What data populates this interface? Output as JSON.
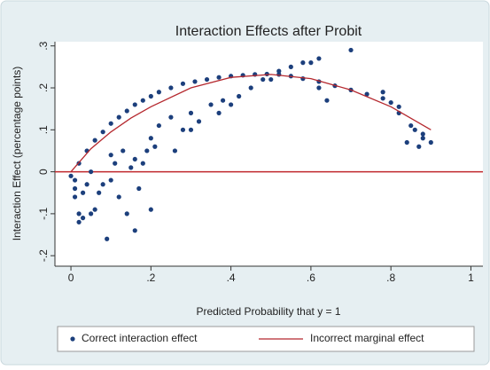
{
  "chart_data": {
    "type": "scatter",
    "title": "Interaction Effects after Probit",
    "x_label": "Predicted Probability that y = 1",
    "y_label": "Interaction Effect (percentage points)",
    "xlim": [
      -0.04,
      1.03
    ],
    "ylim": [
      -0.225,
      0.31
    ],
    "xticks": [
      0,
      {
        "value": 0.2,
        "label": ".2"
      },
      {
        "value": 0.4,
        "label": ".4"
      },
      {
        "value": 0.6,
        "label": ".6"
      },
      {
        "value": 0.8,
        "label": ".8"
      },
      1
    ],
    "yticks": [
      {
        "value": -0.2,
        "label": "-.2"
      },
      {
        "value": -0.1,
        "label": "-.1"
      },
      0,
      {
        "value": 0.1,
        "label": ".1"
      },
      {
        "value": 0.2,
        "label": ".2"
      },
      {
        "value": 0.3,
        "label": ".3"
      }
    ],
    "reference_line": {
      "value": 0,
      "color": "#c0282c"
    },
    "series": [
      {
        "name": "Correct interaction effect",
        "type": "scatter",
        "color": "#1c3f7c",
        "x": [
          0.02,
          0.04,
          0.06,
          0.08,
          0.1,
          0.12,
          0.14,
          0.16,
          0.18,
          0.2,
          0.22,
          0.25,
          0.28,
          0.31,
          0.34,
          0.37,
          0.4,
          0.43,
          0.46,
          0.49,
          0.52,
          0.55,
          0.58,
          0.62,
          0.66,
          0.7,
          0.74,
          0.78,
          0.8,
          0.82,
          0.01,
          0.01,
          0.02,
          0.02,
          0.03,
          0.01,
          0.0,
          0.03,
          0.04,
          0.05,
          0.05,
          0.06,
          0.07,
          0.08,
          0.09,
          0.1,
          0.1,
          0.11,
          0.12,
          0.13,
          0.14,
          0.15,
          0.16,
          0.16,
          0.17,
          0.18,
          0.19,
          0.2,
          0.2,
          0.21,
          0.22,
          0.25,
          0.26,
          0.28,
          0.3,
          0.3,
          0.32,
          0.35,
          0.37,
          0.38,
          0.4,
          0.42,
          0.45,
          0.48,
          0.5,
          0.52,
          0.55,
          0.58,
          0.6,
          0.62,
          0.62,
          0.64,
          0.7,
          0.78,
          0.82,
          0.84,
          0.85,
          0.86,
          0.87,
          0.88,
          0.9,
          0.88
        ],
        "values": [
          0.02,
          0.05,
          0.075,
          0.095,
          0.115,
          0.13,
          0.145,
          0.16,
          0.17,
          0.18,
          0.19,
          0.2,
          0.21,
          0.215,
          0.22,
          0.225,
          0.228,
          0.23,
          0.232,
          0.233,
          0.232,
          0.228,
          0.222,
          0.215,
          0.205,
          0.195,
          0.185,
          0.175,
          0.165,
          0.155,
          -0.04,
          -0.06,
          -0.1,
          -0.12,
          -0.11,
          -0.02,
          -0.01,
          -0.05,
          -0.03,
          -0.1,
          0.0,
          -0.09,
          -0.05,
          -0.03,
          -0.16,
          0.04,
          -0.02,
          0.02,
          -0.06,
          0.05,
          -0.1,
          0.01,
          -0.14,
          0.03,
          -0.04,
          0.02,
          0.05,
          -0.09,
          0.08,
          0.06,
          0.11,
          0.13,
          0.05,
          0.1,
          0.1,
          0.14,
          0.12,
          0.16,
          0.14,
          0.17,
          0.16,
          0.18,
          0.2,
          0.22,
          0.22,
          0.24,
          0.25,
          0.26,
          0.26,
          0.27,
          0.2,
          0.17,
          0.29,
          0.19,
          0.14,
          0.07,
          0.11,
          0.1,
          0.06,
          0.08,
          0.07,
          0.09
        ]
      },
      {
        "name": "Incorrect marginal effect",
        "type": "line",
        "color": "#b5282e",
        "x": [
          0.0,
          0.05,
          0.1,
          0.15,
          0.2,
          0.3,
          0.4,
          0.5,
          0.6,
          0.7,
          0.8,
          0.9
        ],
        "values": [
          0.0,
          0.055,
          0.095,
          0.128,
          0.155,
          0.2,
          0.225,
          0.232,
          0.222,
          0.195,
          0.155,
          0.1
        ]
      }
    ]
  }
}
